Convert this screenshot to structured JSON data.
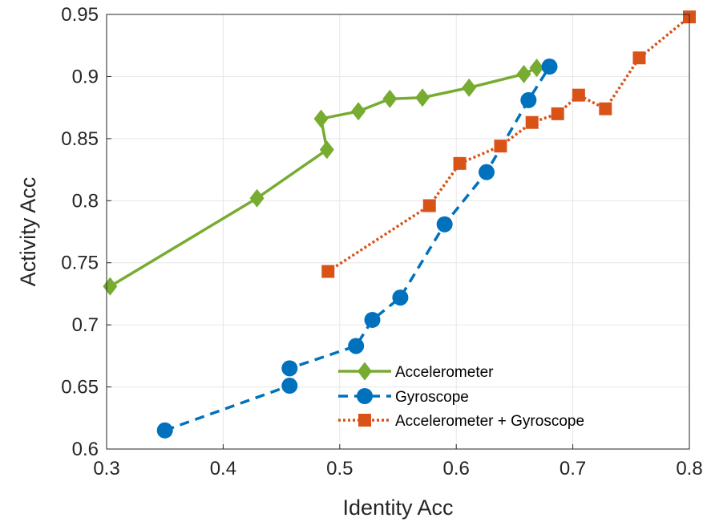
{
  "chart_data": {
    "type": "line",
    "title": "",
    "xlabel": "Identity Acc",
    "ylabel": "Activity Acc",
    "xlim": [
      0.3,
      0.8
    ],
    "ylim": [
      0.6,
      0.95
    ],
    "xticks": [
      "0.3",
      "0.4",
      "0.5",
      "0.6",
      "0.7",
      "0.8"
    ],
    "yticks": [
      "0.6",
      "0.65",
      "0.7",
      "0.75",
      "0.8",
      "0.85",
      "0.9",
      "0.95"
    ],
    "grid": true,
    "legend_position": "bottom-right",
    "series": [
      {
        "name": "Accelerometer",
        "color": "#77AC30",
        "marker": "diamond",
        "line_style": "solid",
        "points": [
          [
            0.303,
            0.731
          ],
          [
            0.429,
            0.802
          ],
          [
            0.489,
            0.841
          ],
          [
            0.484,
            0.866
          ],
          [
            0.516,
            0.872
          ],
          [
            0.543,
            0.882
          ],
          [
            0.571,
            0.883
          ],
          [
            0.611,
            0.891
          ],
          [
            0.658,
            0.902
          ],
          [
            0.669,
            0.907
          ]
        ]
      },
      {
        "name": "Gyroscope",
        "color": "#0072BD",
        "marker": "circle",
        "line_style": "dashed",
        "points": [
          [
            0.35,
            0.615
          ],
          [
            0.457,
            0.651
          ],
          [
            0.457,
            0.665
          ],
          [
            0.514,
            0.683
          ],
          [
            0.528,
            0.704
          ],
          [
            0.552,
            0.722
          ],
          [
            0.59,
            0.781
          ],
          [
            0.626,
            0.823
          ],
          [
            0.662,
            0.881
          ],
          [
            0.68,
            0.908
          ]
        ]
      },
      {
        "name": "Accelerometer + Gyroscope",
        "color": "#D95319",
        "marker": "square",
        "line_style": "dotted",
        "points": [
          [
            0.49,
            0.743
          ],
          [
            0.577,
            0.796
          ],
          [
            0.603,
            0.83
          ],
          [
            0.638,
            0.844
          ],
          [
            0.665,
            0.863
          ],
          [
            0.687,
            0.87
          ],
          [
            0.705,
            0.885
          ],
          [
            0.728,
            0.874
          ],
          [
            0.757,
            0.915
          ],
          [
            0.8,
            0.948
          ]
        ]
      }
    ]
  }
}
